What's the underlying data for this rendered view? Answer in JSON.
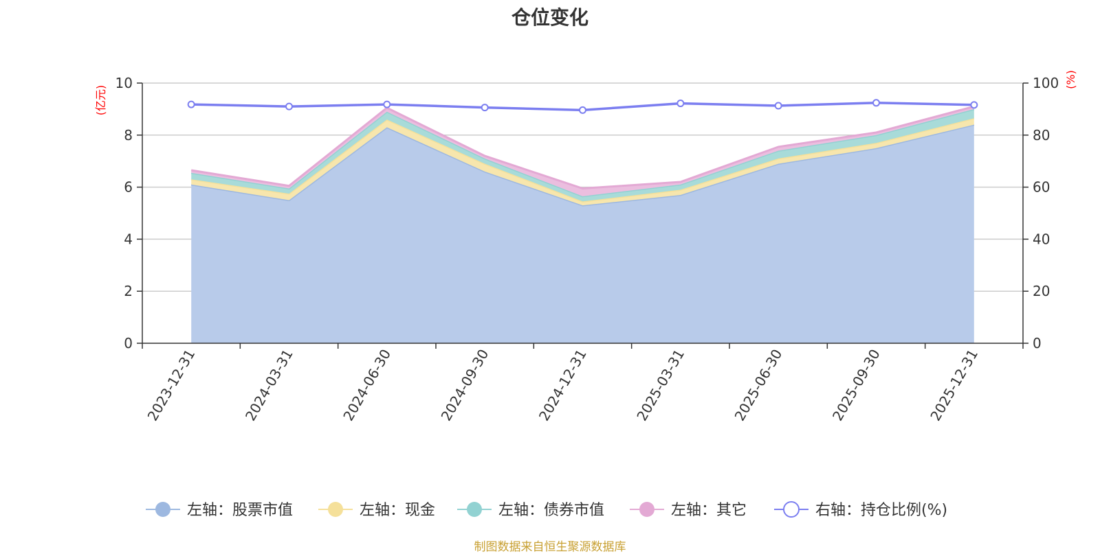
{
  "chart_data": {
    "type": "area",
    "title": "仓位变化",
    "source": "制图数据来自恒生聚源数据库",
    "categories": [
      "2023-12-31",
      "2024-03-31",
      "2024-06-30",
      "2024-09-30",
      "2024-12-31",
      "2025-03-31",
      "2025-06-30",
      "2025-09-30",
      "2025-12-31"
    ],
    "left_axis": {
      "unit_label": "(亿元)",
      "min": 0,
      "max": 10,
      "ticks": [
        "0",
        "2",
        "4",
        "6",
        "8",
        "10"
      ]
    },
    "right_axis": {
      "unit_label": "(%)",
      "min": 0,
      "max": 100,
      "ticks": [
        "0",
        "20",
        "40",
        "60",
        "80",
        "100"
      ]
    },
    "stacked": true,
    "grid": true,
    "legend_position": "bottom",
    "series": [
      {
        "name": "左轴：股票市值",
        "axis": "left",
        "color": "#9db8e0",
        "fill": "#b8cbea",
        "values": [
          6.1,
          5.5,
          8.3,
          6.6,
          5.3,
          5.7,
          6.9,
          7.5,
          8.4
        ]
      },
      {
        "name": "左轴：现金",
        "axis": "left",
        "color": "#f5e09a",
        "fill": "#f7e6ad",
        "values": [
          0.2,
          0.25,
          0.3,
          0.3,
          0.15,
          0.2,
          0.2,
          0.2,
          0.25
        ]
      },
      {
        "name": "左轴：债券市值",
        "axis": "left",
        "color": "#92d2d2",
        "fill": "#a8dbd9",
        "values": [
          0.25,
          0.2,
          0.3,
          0.2,
          0.2,
          0.2,
          0.3,
          0.3,
          0.35
        ]
      },
      {
        "name": "左轴：其它",
        "axis": "left",
        "color": "#e3a9d4",
        "fill": "#ebbedf",
        "values": [
          0.1,
          0.1,
          0.15,
          0.1,
          0.3,
          0.1,
          0.15,
          0.1,
          0.1
        ]
      },
      {
        "name": "右轴：持仓比例(%)",
        "axis": "right",
        "type": "line",
        "color": "#7b7ef0",
        "values": [
          91.8,
          91.0,
          91.8,
          90.6,
          89.6,
          92.2,
          91.3,
          92.4,
          91.6
        ]
      }
    ]
  }
}
